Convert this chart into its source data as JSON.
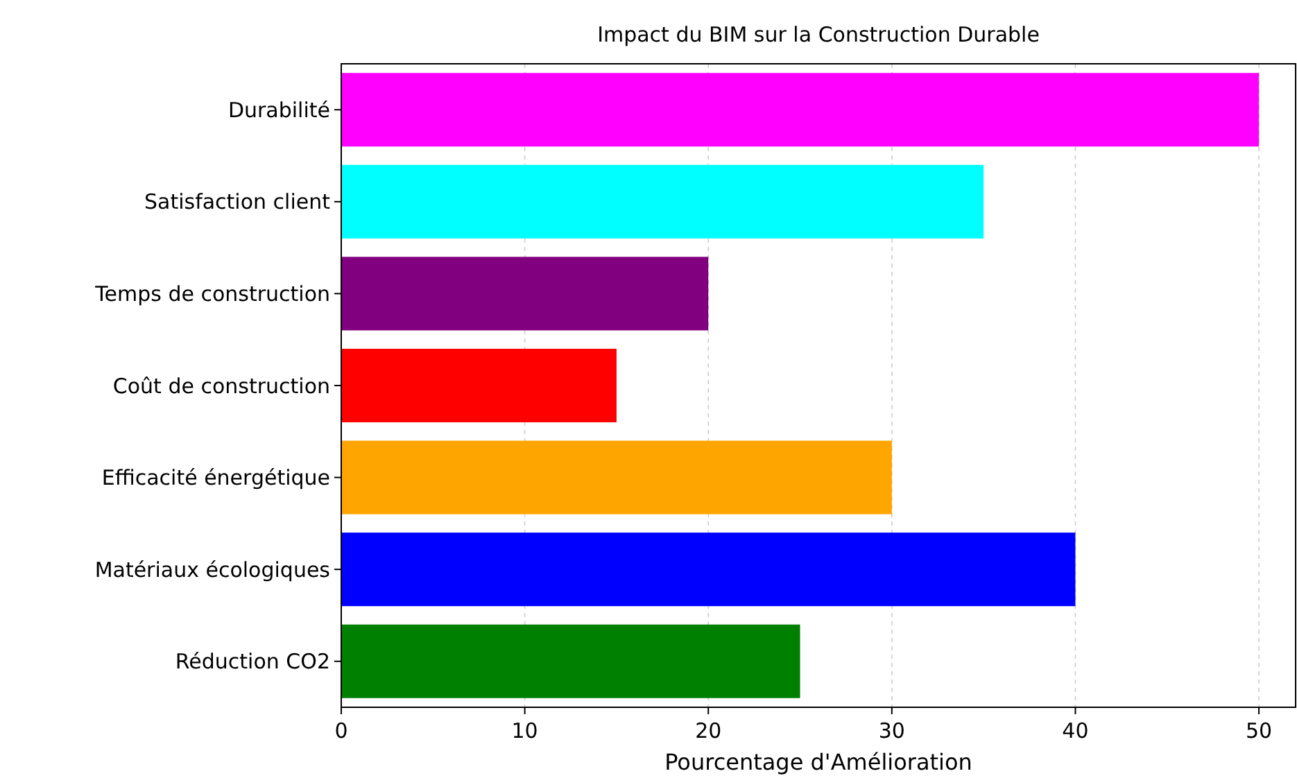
{
  "chart_data": {
    "type": "bar",
    "orientation": "horizontal",
    "title": "Impact du BIM sur la Construction Durable",
    "xlabel": "Pourcentage d'Amélioration",
    "categories": [
      "Durabilité",
      "Satisfaction client",
      "Temps de construction",
      "Coût de construction",
      "Efficacité énergétique",
      "Matériaux écologiques",
      "Réduction CO2"
    ],
    "values": [
      50,
      35,
      20,
      15,
      30,
      40,
      25
    ],
    "colors": [
      "#ff00ff",
      "#00ffff",
      "#800080",
      "#ff0000",
      "#ffa500",
      "#0000ff",
      "#008000"
    ],
    "xlim": [
      0,
      52
    ],
    "xticks": [
      0,
      10,
      20,
      30,
      40,
      50
    ],
    "grid": "x"
  }
}
